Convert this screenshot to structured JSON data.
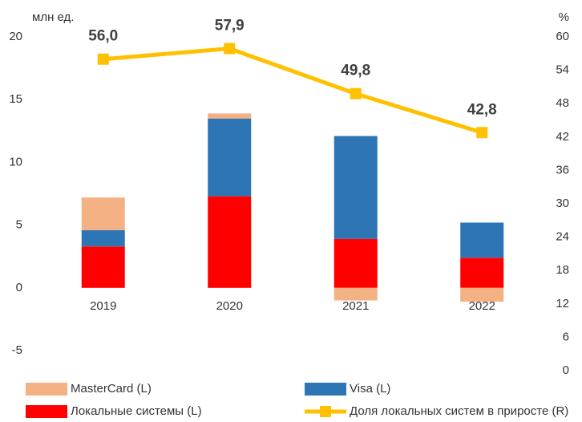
{
  "chart_data": {
    "type": "bar",
    "ylabel": "млн ед.",
    "y2label": "%",
    "categories": [
      "2019",
      "2020",
      "2021",
      "2022"
    ],
    "series": [
      {
        "name": "MasterCard (L)",
        "color": "#f4b183",
        "values": [
          2.6,
          0.4,
          -1.0,
          -1.1
        ]
      },
      {
        "name": "Visa  (L)",
        "color": "#2e75b6",
        "values": [
          1.3,
          6.2,
          8.2,
          2.8
        ]
      },
      {
        "name": "Локальные системы (L)",
        "color": "#ff0000",
        "values": [
          3.3,
          7.3,
          3.9,
          2.4
        ]
      },
      {
        "name": "Доля локальных систем в приросте (R)",
        "color": "#ffc000",
        "type": "line",
        "axis": "y2",
        "values": [
          56.0,
          57.9,
          49.8,
          42.8
        ],
        "value_labels": [
          "56,0",
          "57,9",
          "49,8",
          "42,8"
        ]
      }
    ],
    "ylim": [
      -5,
      20
    ],
    "yticks": [
      -5,
      0,
      5,
      10,
      15,
      20
    ],
    "y2lim": [
      0,
      60
    ],
    "y2ticks": [
      0,
      6,
      12,
      18,
      24,
      30,
      36,
      42,
      48,
      54,
      60
    ]
  }
}
